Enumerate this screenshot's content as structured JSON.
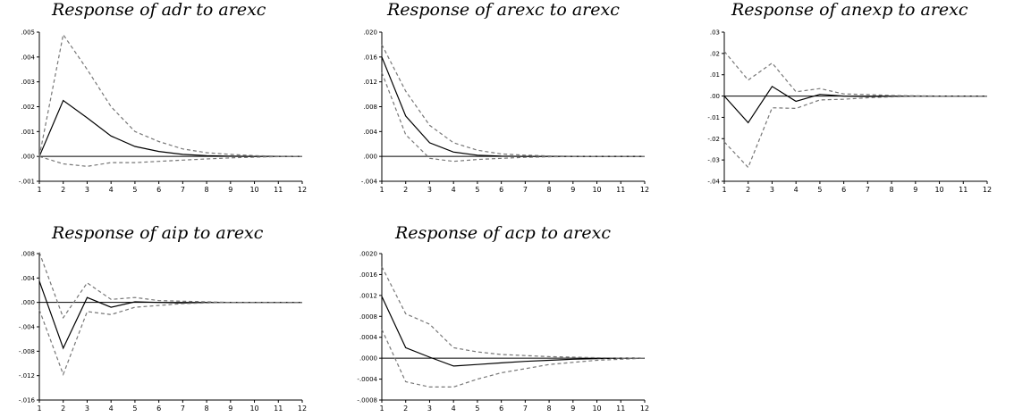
{
  "chart_data": [
    {
      "type": "line",
      "title": "Response of adr to arexc",
      "x": [
        1,
        2,
        3,
        4,
        5,
        6,
        7,
        8,
        9,
        10,
        11,
        12
      ],
      "x_tick_labels": [
        "1",
        "2",
        "3",
        "4",
        "5",
        "6",
        "7",
        "8",
        "9",
        "10",
        "11",
        "12"
      ],
      "ylim": [
        -0.001,
        0.005
      ],
      "y_ticks": [
        -0.001,
        0.0,
        0.001,
        0.002,
        0.003,
        0.004,
        0.005
      ],
      "y_tick_labels": [
        "-.001",
        ".000",
        ".001",
        ".002",
        ".003",
        ".004",
        ".005"
      ],
      "series": [
        {
          "style": "solid",
          "values": [
            0.0,
            0.00225,
            0.00155,
            0.00082,
            0.0004,
            0.0002,
            8e-05,
            3e-05,
            1e-05,
            0.0,
            0.0,
            0.0
          ]
        },
        {
          "style": "dashed",
          "values": [
            0.0,
            0.0049,
            0.0035,
            0.002,
            0.001,
            0.0006,
            0.0003,
            0.00015,
            8e-05,
            3e-05,
            1e-05,
            0.0
          ]
        },
        {
          "style": "dashed",
          "values": [
            0.0,
            -0.0003,
            -0.0004,
            -0.00025,
            -0.00025,
            -0.0002,
            -0.00015,
            -0.0001,
            -6e-05,
            -3e-05,
            -1e-05,
            0.0
          ]
        }
      ],
      "grid": false
    },
    {
      "type": "line",
      "title": "Response of arexc to arexc",
      "x": [
        1,
        2,
        3,
        4,
        5,
        6,
        7,
        8,
        9,
        10,
        11,
        12
      ],
      "x_tick_labels": [
        "1",
        "2",
        "3",
        "4",
        "5",
        "6",
        "7",
        "8",
        "9",
        "10",
        "11",
        "12"
      ],
      "ylim": [
        -0.004,
        0.02
      ],
      "y_ticks": [
        -0.004,
        0.0,
        0.004,
        0.008,
        0.012,
        0.016,
        0.02
      ],
      "y_tick_labels": [
        "-.004",
        ".000",
        ".004",
        ".008",
        ".012",
        ".016",
        ".020"
      ],
      "series": [
        {
          "style": "solid",
          "values": [
            0.016,
            0.0065,
            0.0022,
            0.0007,
            0.0002,
            5e-05,
            0.0,
            0.0,
            0.0,
            0.0,
            0.0,
            0.0
          ]
        },
        {
          "style": "dashed",
          "values": [
            0.018,
            0.0105,
            0.005,
            0.0022,
            0.001,
            0.0004,
            0.0002,
            8e-05,
            3e-05,
            1e-05,
            0.0,
            0.0
          ]
        },
        {
          "style": "dashed",
          "values": [
            0.0135,
            0.0035,
            -0.0003,
            -0.0008,
            -0.0005,
            -0.0003,
            -0.00015,
            -6e-05,
            -2e-05,
            0.0,
            0.0,
            0.0
          ]
        }
      ],
      "grid": false
    },
    {
      "type": "line",
      "title": "Response of anexp to arexc",
      "x": [
        1,
        2,
        3,
        4,
        5,
        6,
        7,
        8,
        9,
        10,
        11,
        12
      ],
      "x_tick_labels": [
        "1",
        "2",
        "3",
        "4",
        "5",
        "6",
        "7",
        "8",
        "9",
        "10",
        "11",
        "12"
      ],
      "ylim": [
        -0.04,
        0.03
      ],
      "y_ticks": [
        -0.04,
        -0.03,
        -0.02,
        -0.01,
        0.0,
        0.01,
        0.02,
        0.03
      ],
      "y_tick_labels": [
        "-.04",
        "-.03",
        "-.02",
        "-.01",
        ".00",
        ".01",
        ".02",
        ".03"
      ],
      "series": [
        {
          "style": "solid",
          "values": [
            0.0,
            -0.0125,
            0.0045,
            -0.0025,
            0.0008,
            0.0,
            -0.0002,
            -0.0001,
            0.0,
            0.0,
            0.0,
            0.0
          ]
        },
        {
          "style": "dashed",
          "values": [
            0.021,
            0.0075,
            0.0155,
            0.002,
            0.0035,
            0.001,
            0.0007,
            0.0003,
            0.0001,
            0.0,
            0.0,
            0.0
          ]
        },
        {
          "style": "dashed",
          "values": [
            -0.0215,
            -0.0335,
            -0.0055,
            -0.0058,
            -0.0018,
            -0.0015,
            -0.0008,
            -0.0004,
            -0.0001,
            0.0,
            0.0,
            0.0
          ]
        }
      ],
      "grid": false
    },
    {
      "type": "line",
      "title": "Response of aip to arexc",
      "x": [
        1,
        2,
        3,
        4,
        5,
        6,
        7,
        8,
        9,
        10,
        11,
        12
      ],
      "x_tick_labels": [
        "1",
        "2",
        "3",
        "4",
        "5",
        "6",
        "7",
        "8",
        "9",
        "10",
        "11",
        "12"
      ],
      "ylim": [
        -0.016,
        0.008
      ],
      "y_ticks": [
        -0.016,
        -0.012,
        -0.008,
        -0.004,
        0.0,
        0.004,
        0.008
      ],
      "y_tick_labels": [
        "-.016",
        "-.012",
        "-.008",
        "-.004",
        ".000",
        ".004",
        ".008"
      ],
      "series": [
        {
          "style": "solid",
          "values": [
            0.0035,
            -0.0075,
            0.0008,
            -0.0008,
            0.0001,
            0.0,
            -0.0001,
            0.0,
            0.0,
            0.0,
            0.0,
            0.0
          ]
        },
        {
          "style": "dashed",
          "values": [
            0.0082,
            -0.0025,
            0.0032,
            0.0005,
            0.0008,
            0.0003,
            0.0002,
            0.0001,
            0.0,
            0.0,
            0.0,
            0.0
          ]
        },
        {
          "style": "dashed",
          "values": [
            -0.0012,
            -0.0118,
            -0.0015,
            -0.002,
            -0.0008,
            -0.0005,
            -0.0002,
            -0.0001,
            0.0,
            0.0,
            0.0,
            0.0
          ]
        }
      ],
      "grid": false
    },
    {
      "type": "line",
      "title": "Response of acp to arexc",
      "x": [
        1,
        2,
        3,
        4,
        5,
        6,
        7,
        8,
        9,
        10,
        11,
        12
      ],
      "x_tick_labels": [
        "1",
        "2",
        "3",
        "4",
        "5",
        "6",
        "7",
        "8",
        "9",
        "10",
        "11",
        "12"
      ],
      "ylim": [
        -0.0008,
        0.002
      ],
      "y_ticks": [
        -0.0008,
        -0.0004,
        0.0,
        0.0004,
        0.0008,
        0.0012,
        0.0016,
        0.002
      ],
      "y_tick_labels": [
        "-.0008",
        "-.0004",
        ".0000",
        ".0004",
        ".0008",
        ".0012",
        ".0016",
        ".0020"
      ],
      "series": [
        {
          "style": "solid",
          "values": [
            0.00118,
            0.0002,
            2e-05,
            -0.00015,
            -0.00012,
            -9e-05,
            -6e-05,
            -4e-05,
            -2e-05,
            -1e-05,
            0.0,
            0.0
          ]
        },
        {
          "style": "dashed",
          "values": [
            0.00175,
            0.00085,
            0.00065,
            0.0002,
            0.00012,
            7e-05,
            5e-05,
            3e-05,
            2e-05,
            1e-05,
            0.0,
            0.0
          ]
        },
        {
          "style": "dashed",
          "values": [
            0.00055,
            -0.00045,
            -0.00055,
            -0.00055,
            -0.0004,
            -0.00028,
            -0.0002,
            -0.00012,
            -8e-05,
            -4e-05,
            -2e-05,
            0.0
          ]
        }
      ],
      "grid": false
    }
  ]
}
